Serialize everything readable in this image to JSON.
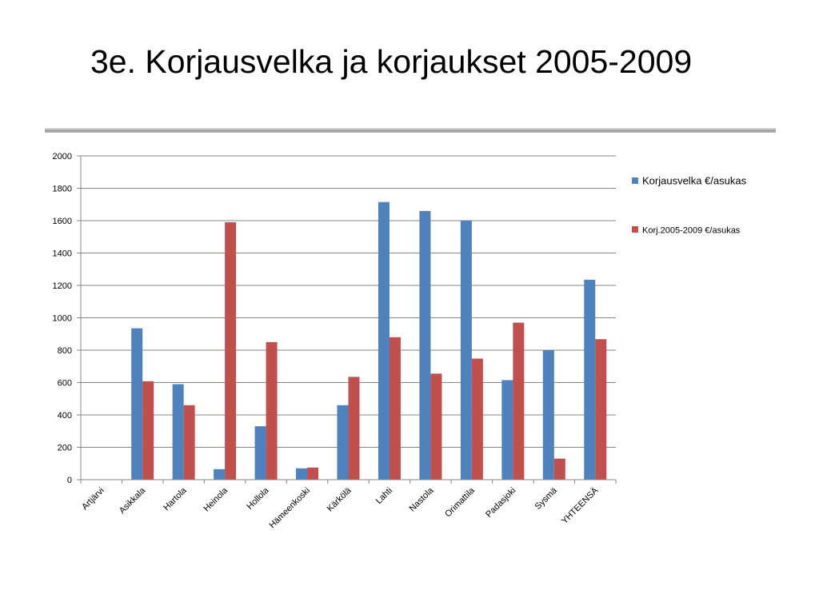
{
  "slide": {
    "title": "3e. Korjausvelka ja korjaukset 2005-2009"
  },
  "chart_data": {
    "type": "bar",
    "categories": [
      "Artjärvi",
      "Asikkala",
      "Hartola",
      "Heinola",
      "Hollola",
      "Hämeenkoski",
      "Kärkölä",
      "Lahti",
      "Nastola",
      "Orimattila",
      "Padasjoki",
      "Sysmä",
      "YHTEENSÄ"
    ],
    "series": [
      {
        "name": "Korjausvelka €/asukas",
        "color": "#4f81bd",
        "values": [
          0,
          935,
          590,
          65,
          330,
          70,
          460,
          1715,
          1660,
          1600,
          615,
          800,
          1235
        ]
      },
      {
        "name": "Korj.2005-2009 €/asukas",
        "color": "#c0504d",
        "values": [
          0,
          608,
          460,
          1590,
          850,
          75,
          635,
          880,
          655,
          748,
          970,
          130,
          868
        ]
      }
    ],
    "ylim": [
      0,
      2000
    ],
    "yticks": [
      "0",
      "200",
      "400",
      "600",
      "800",
      "1000",
      "1200",
      "1400",
      "1600",
      "1800",
      "2000"
    ],
    "grid": true,
    "legend": "right"
  }
}
